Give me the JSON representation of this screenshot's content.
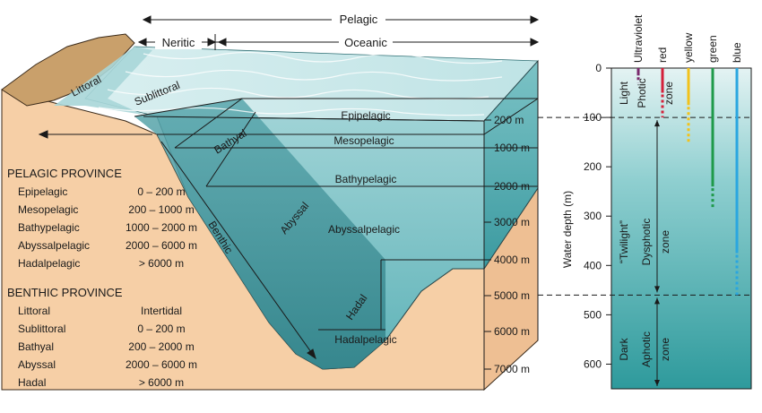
{
  "top_arrows": {
    "pelagic": "Pelagic",
    "neritic": "Neritic",
    "oceanic": "Oceanic"
  },
  "block_labels": {
    "littoral": "Littoral",
    "sublittoral": "Sublittoral",
    "bathyal": "Bathyal",
    "abyssal": "Abyssal",
    "hadal": "Hadal",
    "benthic": "Benthic",
    "epipelagic": "Epipelagic",
    "mesopelagic": "Mesopelagic",
    "bathypelagic": "Bathypelagic",
    "abyssalpelagic": "Abyssalpelagic",
    "hadalpelagic": "Hadalpelagic"
  },
  "depth_scale": [
    "200 m",
    "1000 m",
    "2000 m",
    "3000 m",
    "4000 m",
    "5000 m",
    "6000 m",
    "7000 m"
  ],
  "pelagic_province": {
    "title": "PELAGIC PROVINCE",
    "rows": [
      {
        "zone": "Epipelagic",
        "range": "0 – 200 m"
      },
      {
        "zone": "Mesopelagic",
        "range": "200 – 1000 m"
      },
      {
        "zone": "Bathypelagic",
        "range": "1000 – 2000 m"
      },
      {
        "zone": "Abyssalpelagic",
        "range": "2000 – 6000 m"
      },
      {
        "zone": "Hadalpelagic",
        "range": "> 6000 m"
      }
    ]
  },
  "benthic_province": {
    "title": "BENTHIC PROVINCE",
    "rows": [
      {
        "zone": "Littoral",
        "range": "Intertidal"
      },
      {
        "zone": "Sublittoral",
        "range": "0 – 200 m"
      },
      {
        "zone": "Bathyal",
        "range": "200 – 2000 m"
      },
      {
        "zone": "Abyssal",
        "range": "2000 – 6000 m"
      },
      {
        "zone": "Hadal",
        "range": "> 6000 m"
      }
    ]
  },
  "light_chart": {
    "y_axis_label": "Water depth (m)",
    "y_ticks": [
      0,
      100,
      200,
      300,
      400,
      500,
      600
    ],
    "y_max": 650,
    "wavelengths": [
      {
        "name": "Ultraviolet",
        "color": "#7a2a6e",
        "solid_to": 15,
        "dotted_to": 30
      },
      {
        "name": "red",
        "color": "#d4203a",
        "solid_to": 50,
        "dotted_to": 100
      },
      {
        "name": "yellow",
        "color": "#f2c21b",
        "solid_to": 75,
        "dotted_to": 150
      },
      {
        "name": "green",
        "color": "#1f9a4a",
        "solid_to": 240,
        "dotted_to": 285
      },
      {
        "name": "blue",
        "color": "#2aa6e0",
        "solid_to": 375,
        "dotted_to": 460
      }
    ],
    "zone_boundaries": [
      100,
      460
    ],
    "zones": [
      {
        "line1": "Light",
        "line2": "",
        "line3": "Photic",
        "line4": "zone"
      },
      {
        "line1": "“Twilight”",
        "line2": "",
        "line3": "Dysphotic",
        "line4": "zone"
      },
      {
        "line1": "Dark",
        "line2": "",
        "line3": "Aphotic",
        "line4": "zone"
      }
    ]
  },
  "colors": {
    "land": "#f6cfa6",
    "land_top": "#c9a06b",
    "water_light": "#bfe2e4",
    "water_mid": "#7fc3c6",
    "water_deep": "#3f9ea3",
    "chart_top": "#dff1f1",
    "chart_bottom": "#2f9c9e"
  }
}
